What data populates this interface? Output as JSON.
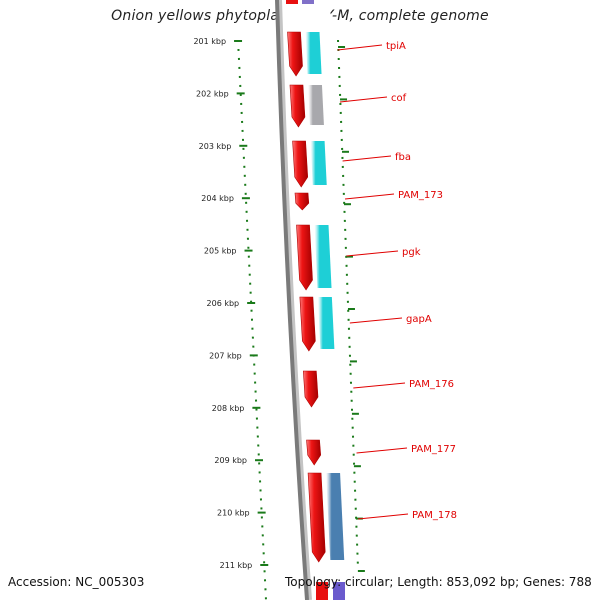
{
  "title": "Onion yellows phytoplasma OY-M, complete genome",
  "footer": {
    "accession": "Accession: NC_005303",
    "topology": "Topology: circular; Length: 853,092 bp; Genes: 788"
  },
  "ticks": [
    "201 kbp",
    "202 kbp",
    "203 kbp",
    "204 kbp",
    "205 kbp",
    "206 kbp",
    "207 kbp",
    "208 kbp",
    "209 kbp",
    "210 kbp",
    "211 kbp"
  ],
  "genes": [
    {
      "label": "tpiA",
      "ref_color": "#1ecfd6",
      "has_ref": true
    },
    {
      "label": "cof",
      "ref_color": "#a8a8ac",
      "has_ref": true
    },
    {
      "label": "fba",
      "ref_color": "#1ecfd6",
      "has_ref": true
    },
    {
      "label": "PAM_173",
      "ref_color": "",
      "has_ref": false
    },
    {
      "label": "pgk",
      "ref_color": "#1ecfd6",
      "has_ref": true
    },
    {
      "label": "gapA",
      "ref_color": "#1ecfd6",
      "has_ref": true
    },
    {
      "label": "PAM_176",
      "ref_color": "",
      "has_ref": false
    },
    {
      "label": "PAM_177",
      "ref_color": "",
      "has_ref": false
    },
    {
      "label": "PAM_178",
      "ref_color": "#4a7fb0",
      "has_ref": true
    }
  ],
  "colors": {
    "gene": "#e81010",
    "label": "#e00000",
    "tick": "#1a7a1a",
    "backbone": "#7a7a7a"
  }
}
